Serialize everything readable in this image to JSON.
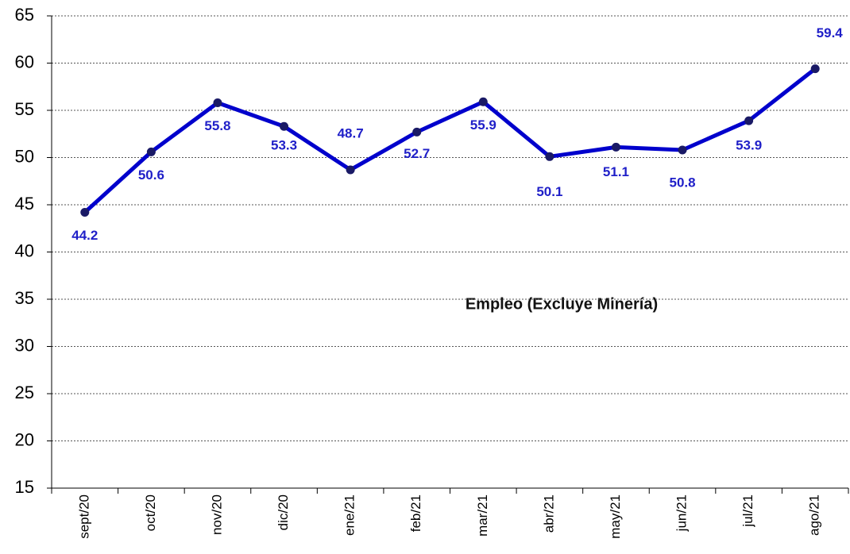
{
  "chart_data": {
    "type": "line",
    "annotation": "Empleo (Excluye Minería)",
    "categories": [
      "sept/20",
      "oct/20",
      "nov/20",
      "dic/20",
      "ene/21",
      "feb/21",
      "mar/21",
      "abr/21",
      "may/21",
      "jun/21",
      "jul/21",
      "ago/21"
    ],
    "series": [
      {
        "name": "Empleo (Excluye Minería)",
        "color": "#0000cc",
        "marker_color": "#1a1a66",
        "values": [
          44.2,
          50.6,
          55.8,
          53.3,
          48.7,
          52.7,
          55.9,
          50.1,
          51.1,
          50.8,
          53.9,
          59.4
        ]
      }
    ],
    "ylim": [
      15,
      65
    ],
    "yticks": [
      15,
      20,
      25,
      30,
      35,
      40,
      45,
      50,
      55,
      60,
      65
    ],
    "grid": true
  }
}
